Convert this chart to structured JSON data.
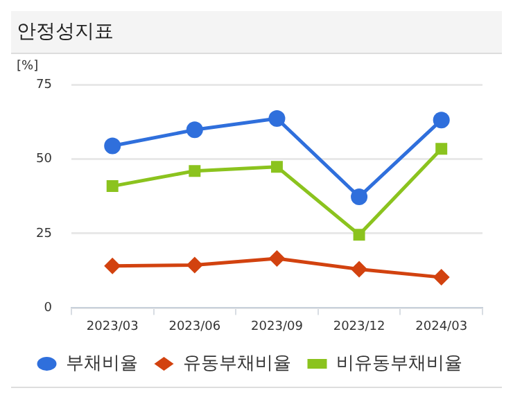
{
  "chart_data": {
    "type": "line",
    "title": "안정성지표",
    "ylabel": "[%]",
    "categories": [
      "2023/03",
      "2023/06",
      "2023/09",
      "2023/12",
      "2024/03"
    ],
    "series": [
      {
        "name": "부채비율",
        "color": "#2f6fdc",
        "marker": "circle",
        "values": [
          54.4,
          59.8,
          63.6,
          37.3,
          63.1
        ]
      },
      {
        "name": "유동부채비율",
        "color": "#d2420f",
        "marker": "diamond",
        "values": [
          14.1,
          14.4,
          16.6,
          13.0,
          10.3
        ]
      },
      {
        "name": "비유동부채비율",
        "color": "#8bc31e",
        "marker": "square",
        "values": [
          40.9,
          46.0,
          47.4,
          24.6,
          53.4
        ]
      }
    ],
    "ylim": [
      0,
      75
    ],
    "yticks": [
      0,
      25,
      50,
      75
    ],
    "grid": "y",
    "legend": "bottom"
  }
}
